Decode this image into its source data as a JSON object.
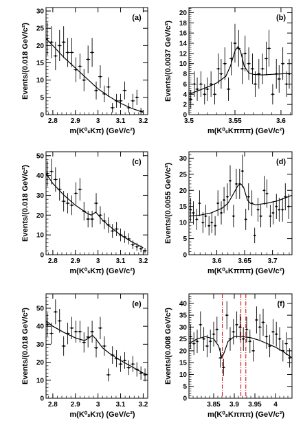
{
  "figure": {
    "background": "#ffffff",
    "ink": "#000000",
    "accent": "#cc0000"
  },
  "chart_data": [
    {
      "id": "a",
      "type": "scatter",
      "panel_label": "(a)",
      "xlabel": "m(K⁰ₛKπ) (GeV/c²)",
      "ylabel": "Events/(0.018 GeV/c²)",
      "xlim": [
        2.77,
        3.22
      ],
      "ylim": [
        0,
        31
      ],
      "xticks": [
        2.8,
        2.9,
        3.0,
        3.1,
        3.2
      ],
      "xtick_labels": [
        "2.8",
        "2.9",
        "3",
        "3.1",
        "3.2"
      ],
      "yticks": [
        0,
        5,
        10,
        15,
        20,
        25,
        30
      ],
      "ytick_labels": [
        "0",
        "5",
        "10",
        "15",
        "20",
        "25",
        "30"
      ],
      "grid": false,
      "series": [
        {
          "x": [
            2.776,
            2.794,
            2.812,
            2.83,
            2.848,
            2.866,
            2.884,
            2.902,
            2.92,
            2.938,
            2.956,
            2.974,
            2.992,
            3.01,
            3.028,
            3.046,
            3.064,
            3.082,
            3.1,
            3.118,
            3.136,
            3.154,
            3.172,
            3.19
          ],
          "y": [
            22,
            21,
            17,
            20,
            21,
            18,
            18,
            13,
            14,
            10,
            16,
            18,
            7,
            11,
            6,
            8,
            2,
            4,
            4,
            7,
            2,
            4,
            5,
            1
          ],
          "yerr": [
            4.7,
            4.6,
            4.1,
            4.5,
            4.6,
            4.2,
            4.2,
            3.6,
            3.7,
            3.2,
            4.0,
            4.2,
            2.6,
            3.3,
            2.4,
            2.8,
            1.4,
            2.0,
            2.0,
            2.6,
            1.4,
            2.0,
            2.2,
            1.0
          ]
        }
      ],
      "fit": {
        "x": [
          2.77,
          2.8,
          2.85,
          2.9,
          2.95,
          3.0,
          3.05,
          3.1,
          3.15,
          3.2
        ],
        "y": [
          22,
          20,
          16.5,
          13.5,
          10.5,
          7.5,
          5.2,
          3.3,
          1.8,
          0.7
        ]
      }
    },
    {
      "id": "b",
      "type": "scatter",
      "panel_label": "(b)",
      "xlabel": "m(K⁰ₛKπππ) (GeV/c²)",
      "ylabel": "Events/(0.0037 GeV/c²)",
      "xlim": [
        3.5,
        3.612
      ],
      "ylim": [
        0,
        21
      ],
      "xticks": [
        3.5,
        3.55,
        3.6
      ],
      "xtick_labels": [
        "3.5",
        "3.55",
        "3.6"
      ],
      "yticks": [
        0,
        2,
        4,
        6,
        8,
        10,
        12,
        14,
        16,
        18,
        20
      ],
      "ytick_labels": [
        "0",
        "2",
        "4",
        "6",
        "8",
        "10",
        "12",
        "14",
        "16",
        "18",
        "20"
      ],
      "grid": false,
      "series": [
        {
          "x": [
            3.502,
            3.506,
            3.509,
            3.513,
            3.517,
            3.52,
            3.524,
            3.528,
            3.532,
            3.535,
            3.539,
            3.543,
            3.546,
            3.55,
            3.554,
            3.558,
            3.561,
            3.565,
            3.569,
            3.572,
            3.576,
            3.58,
            3.584,
            3.587,
            3.591,
            3.595,
            3.598,
            3.602,
            3.606,
            3.609
          ],
          "y": [
            3,
            6,
            5,
            6,
            4,
            5,
            6,
            4,
            9,
            8,
            10,
            5,
            11,
            14,
            13,
            9,
            12,
            10,
            9,
            6,
            8,
            9,
            11,
            13,
            4,
            8,
            7,
            10,
            6,
            8
          ],
          "yerr": [
            1.8,
            2.5,
            2.3,
            2.5,
            2.0,
            2.3,
            2.5,
            2.0,
            3.0,
            2.9,
            3.2,
            2.3,
            3.3,
            3.8,
            3.6,
            3.0,
            3.5,
            3.2,
            3.0,
            2.5,
            2.9,
            3.0,
            3.3,
            3.6,
            2.0,
            2.9,
            2.7,
            3.2,
            2.5,
            2.9
          ]
        }
      ],
      "fit": {
        "x": [
          3.5,
          3.51,
          3.52,
          3.53,
          3.54,
          3.545,
          3.55,
          3.553,
          3.556,
          3.56,
          3.565,
          3.57,
          3.58,
          3.59,
          3.6,
          3.61
        ],
        "y": [
          4.0,
          4.7,
          5.4,
          6.2,
          7.5,
          9.5,
          12.5,
          13.3,
          12.5,
          9.5,
          8.2,
          7.9,
          7.8,
          7.9,
          8.0,
          8.1
        ]
      }
    },
    {
      "id": "c",
      "type": "scatter",
      "panel_label": "(c)",
      "xlabel": "m(K⁰ₛKπ) (GeV/c²)",
      "ylabel": "Events/(0.018 GeV/c²)",
      "xlim": [
        2.77,
        3.22
      ],
      "ylim": [
        0,
        52
      ],
      "xticks": [
        2.8,
        2.9,
        3.0,
        3.1,
        3.2
      ],
      "xtick_labels": [
        "2.8",
        "2.9",
        "3",
        "3.1",
        "3.2"
      ],
      "yticks": [
        0,
        10,
        20,
        30,
        40,
        50
      ],
      "ytick_labels": [
        "0",
        "10",
        "20",
        "30",
        "40",
        "50"
      ],
      "grid": false,
      "series": [
        {
          "x": [
            2.776,
            2.794,
            2.812,
            2.83,
            2.848,
            2.866,
            2.884,
            2.902,
            2.92,
            2.938,
            2.956,
            2.974,
            2.992,
            3.01,
            3.028,
            3.046,
            3.064,
            3.082,
            3.1,
            3.118,
            3.136,
            3.154,
            3.172,
            3.19,
            3.208
          ],
          "y": [
            41,
            42,
            38,
            33,
            27,
            26,
            25,
            31,
            33,
            22,
            18,
            18,
            26,
            20,
            17,
            15,
            12,
            13,
            10,
            9,
            8,
            5,
            4,
            3,
            2
          ],
          "yerr": [
            6.4,
            6.5,
            6.2,
            5.7,
            5.2,
            5.1,
            5.0,
            5.6,
            5.7,
            4.7,
            4.2,
            4.2,
            5.1,
            4.5,
            4.1,
            3.9,
            3.5,
            3.6,
            3.2,
            3.0,
            2.8,
            2.2,
            2.0,
            1.7,
            1.4
          ]
        }
      ],
      "fit": {
        "x": [
          2.77,
          2.8,
          2.85,
          2.9,
          2.95,
          2.97,
          2.99,
          3.02,
          3.05,
          3.1,
          3.15,
          3.2
        ],
        "y": [
          41,
          36,
          30,
          25,
          21,
          20,
          21.5,
          17.5,
          14.5,
          10,
          6.5,
          3.5
        ]
      }
    },
    {
      "id": "d",
      "type": "scatter",
      "panel_label": "(d)",
      "xlabel": "m(K⁰ₛKπππ) (GeV/c²)",
      "ylabel": "Events/(0.0055 GeV/c²)",
      "xlim": [
        3.55,
        3.735
      ],
      "ylim": [
        0,
        32
      ],
      "xticks": [
        3.6,
        3.65,
        3.7
      ],
      "xtick_labels": [
        "3.6",
        "3.65",
        "3.7"
      ],
      "yticks": [
        0,
        5,
        10,
        15,
        20,
        25,
        30
      ],
      "ytick_labels": [
        "0",
        "5",
        "10",
        "15",
        "20",
        "25",
        "30"
      ],
      "grid": false,
      "series": [
        {
          "x": [
            3.553,
            3.558,
            3.564,
            3.569,
            3.575,
            3.58,
            3.586,
            3.591,
            3.597,
            3.602,
            3.608,
            3.613,
            3.619,
            3.624,
            3.63,
            3.635,
            3.641,
            3.646,
            3.652,
            3.657,
            3.663,
            3.668,
            3.674,
            3.679,
            3.685,
            3.69,
            3.696,
            3.701,
            3.707,
            3.712,
            3.718,
            3.723,
            3.729
          ],
          "y": [
            14,
            13,
            11,
            16,
            10,
            12,
            9,
            10,
            9,
            16,
            13,
            17,
            18,
            23,
            12,
            22,
            22,
            26,
            11,
            18,
            16,
            6,
            14,
            12,
            20,
            19,
            12,
            13,
            15,
            14,
            14,
            18,
            15
          ],
          "yerr": [
            3.7,
            3.6,
            3.3,
            4.0,
            3.2,
            3.5,
            3.0,
            3.2,
            3.0,
            4.0,
            3.6,
            4.1,
            4.2,
            4.8,
            3.5,
            4.7,
            4.7,
            5.1,
            3.3,
            4.2,
            4.0,
            2.4,
            3.7,
            3.5,
            4.5,
            4.4,
            3.5,
            3.6,
            3.9,
            3.7,
            3.7,
            4.2,
            3.9
          ]
        }
      ],
      "fit": {
        "x": [
          3.55,
          3.57,
          3.59,
          3.61,
          3.62,
          3.63,
          3.638,
          3.643,
          3.648,
          3.655,
          3.66,
          3.67,
          3.69,
          3.71,
          3.735
        ],
        "y": [
          12,
          12.3,
          13,
          14.5,
          16,
          19,
          21.5,
          22,
          21,
          17,
          16,
          15.5,
          16,
          16.8,
          18.5
        ]
      }
    },
    {
      "id": "e",
      "type": "scatter",
      "panel_label": "(e)",
      "xlabel": "m(K⁰ₛKπ) (GeV/c²)",
      "ylabel": "Events/(0.018 GeV/c²)",
      "xlim": [
        2.77,
        3.22
      ],
      "ylim": [
        0,
        58
      ],
      "xticks": [
        2.8,
        2.9,
        3.0,
        3.1,
        3.2
      ],
      "xtick_labels": [
        "2.8",
        "2.9",
        "3",
        "3.1",
        "3.2"
      ],
      "yticks": [
        0,
        10,
        20,
        30,
        40,
        50
      ],
      "ytick_labels": [
        "0",
        "10",
        "20",
        "30",
        "40",
        "50"
      ],
      "grid": false,
      "series": [
        {
          "x": [
            2.776,
            2.794,
            2.812,
            2.83,
            2.848,
            2.866,
            2.884,
            2.902,
            2.92,
            2.938,
            2.956,
            2.974,
            2.992,
            3.01,
            3.028,
            3.046,
            3.064,
            3.082,
            3.1,
            3.118,
            3.136,
            3.154,
            3.172,
            3.19,
            3.208
          ],
          "y": [
            41,
            36,
            48,
            43,
            29,
            36,
            39,
            37,
            37,
            31,
            34,
            37,
            28,
            39,
            29,
            13,
            24,
            22,
            19,
            21,
            17,
            19,
            16,
            14,
            13
          ],
          "yerr": [
            6.4,
            6.0,
            6.9,
            6.6,
            5.4,
            6.0,
            6.2,
            6.1,
            6.1,
            5.6,
            5.8,
            6.1,
            5.3,
            6.2,
            5.4,
            3.6,
            4.9,
            4.7,
            4.4,
            4.6,
            4.1,
            4.4,
            4.0,
            3.7,
            3.6
          ]
        }
      ],
      "fit": {
        "x": [
          2.77,
          2.8,
          2.85,
          2.9,
          2.94,
          2.96,
          2.975,
          2.99,
          3.02,
          3.05,
          3.1,
          3.15,
          3.2,
          3.22
        ],
        "y": [
          43,
          40,
          36.5,
          33.5,
          32,
          33.5,
          35,
          33,
          28,
          25,
          21,
          17.5,
          14,
          13
        ]
      }
    },
    {
      "id": "f",
      "type": "scatter",
      "panel_label": "(f)",
      "xlabel": "m(K⁰ₛKπππ) (GeV/c²)",
      "ylabel": "Events/(0.008 GeV/c²)",
      "xlim": [
        3.79,
        4.04
      ],
      "ylim": [
        0,
        44
      ],
      "xticks": [
        3.85,
        3.9,
        3.95,
        4.0
      ],
      "xtick_labels": [
        "3.85",
        "3.9",
        "3.95",
        "4"
      ],
      "yticks": [
        0,
        5,
        10,
        15,
        20,
        25,
        30,
        35,
        40
      ],
      "ytick_labels": [
        "0",
        "5",
        "10",
        "15",
        "20",
        "25",
        "30",
        "35",
        "40"
      ],
      "grid": false,
      "vlines": {
        "x": [
          3.871,
          3.916,
          3.928
        ],
        "color": "#cc0000",
        "style": "dash-dot"
      },
      "series": [
        {
          "x": [
            3.794,
            3.802,
            3.81,
            3.818,
            3.826,
            3.834,
            3.842,
            3.85,
            3.858,
            3.866,
            3.874,
            3.882,
            3.89,
            3.898,
            3.906,
            3.914,
            3.922,
            3.93,
            3.938,
            3.946,
            3.954,
            3.962,
            3.97,
            3.978,
            3.986,
            3.994,
            4.002,
            4.01,
            4.018,
            4.026,
            4.034
          ],
          "y": [
            26,
            23,
            24,
            31,
            25,
            22,
            24,
            27,
            29,
            17,
            13,
            35,
            25,
            28,
            31,
            30,
            25,
            29,
            24,
            20,
            33,
            30,
            32,
            26,
            22,
            28,
            27,
            25,
            20,
            23,
            17
          ],
          "yerr": [
            5.1,
            4.8,
            4.9,
            5.6,
            5.0,
            4.7,
            4.9,
            5.2,
            5.4,
            4.1,
            3.6,
            5.9,
            5.0,
            5.3,
            5.6,
            5.5,
            5.0,
            5.4,
            4.9,
            4.5,
            5.7,
            5.5,
            5.7,
            5.1,
            4.7,
            5.3,
            5.2,
            5.0,
            4.5,
            4.8,
            4.1
          ]
        }
      ],
      "fit": {
        "x": [
          3.79,
          3.81,
          3.83,
          3.85,
          3.862,
          3.87,
          3.876,
          3.885,
          3.9,
          3.92,
          3.94,
          3.96,
          3.98,
          4.0,
          4.02,
          4.04
        ],
        "y": [
          23,
          25,
          26,
          25,
          22,
          17,
          19.5,
          24,
          26,
          26,
          25.5,
          24.5,
          23,
          21.5,
          19.5,
          17
        ]
      }
    }
  ]
}
